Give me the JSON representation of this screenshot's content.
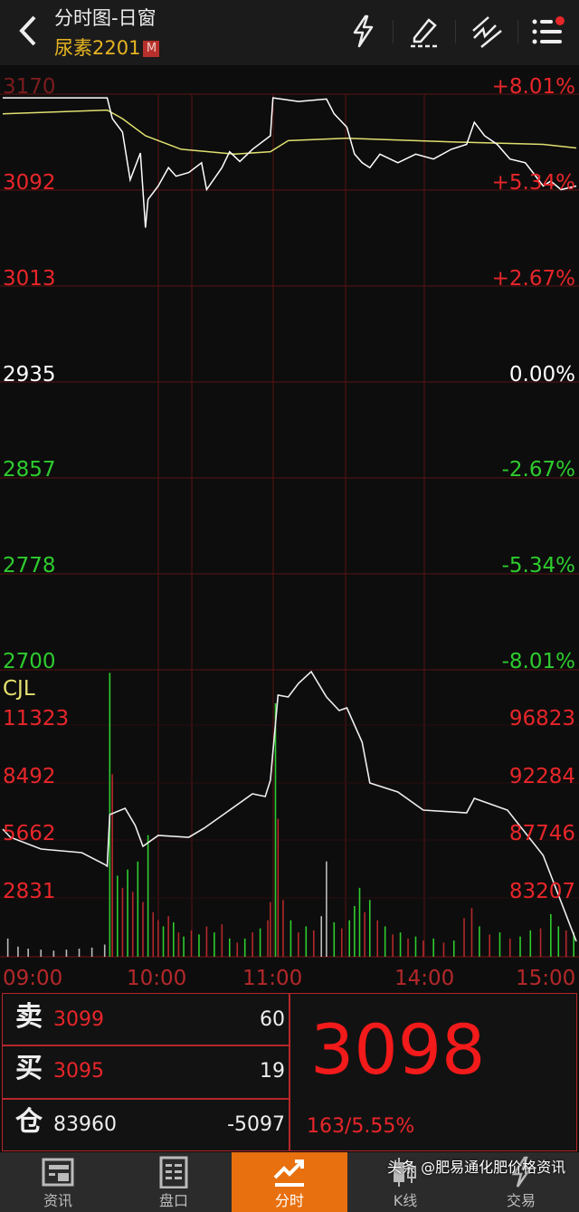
{
  "header": {
    "title": "分时图-日窗",
    "symbol": "尿素2201",
    "badge": "M",
    "icons": [
      "back-icon",
      "lightning-icon",
      "pencil-icon",
      "draw-line-icon",
      "menu-list-icon"
    ]
  },
  "colors": {
    "up": "#e8262a",
    "down": "#2ecc2e",
    "price_line": "#ffffff",
    "avg_line": "#e0e070",
    "grid": "#5a1214",
    "accent": "#e8700f",
    "symbol": "#e6b422"
  },
  "price_axis": {
    "left": [
      "3170",
      "3092",
      "3013",
      "2935",
      "2857",
      "2778",
      "2700"
    ],
    "right": [
      "+8.01%",
      "+5.34%",
      "+2.67%",
      "0.00%",
      "-2.67%",
      "-5.34%",
      "-8.01%"
    ],
    "max": 3170,
    "min": 2700,
    "prev_close": 2935
  },
  "volume_axis": {
    "title": "CJL",
    "left": [
      "11323",
      "8492",
      "5662",
      "2831"
    ],
    "right": [
      "96823",
      "92284",
      "87746",
      "83207"
    ],
    "vol_max": 14150,
    "oi_top": 96823,
    "oi_step": 4539
  },
  "time_axis": [
    "09:00",
    "10:00",
    "11:00",
    "14:00",
    "15:00"
  ],
  "chart_data": {
    "type": "line",
    "price": [
      [
        "09:00",
        3167
      ],
      [
        "09:41",
        3167
      ],
      [
        "09:43",
        3150
      ],
      [
        "09:47",
        3139
      ],
      [
        "09:50",
        3100
      ],
      [
        "09:54",
        3122
      ],
      [
        "09:56",
        3061
      ],
      [
        "09:57",
        3084
      ],
      [
        "10:01",
        3095
      ],
      [
        "10:05",
        3110
      ],
      [
        "10:08",
        3103
      ],
      [
        "10:13",
        3106
      ],
      [
        "10:33",
        3114
      ],
      [
        "10:35",
        3092
      ],
      [
        "10:41",
        3110
      ],
      [
        "10:44",
        3123
      ],
      [
        "10:48",
        3115
      ],
      [
        "10:53",
        3125
      ],
      [
        "11:00",
        3136
      ],
      [
        "11:01",
        3167
      ],
      [
        "11:11",
        3164
      ],
      [
        "11:22",
        3166
      ],
      [
        "11:25",
        3154
      ],
      [
        "13:30",
        3143
      ],
      [
        "13:33",
        3121
      ],
      [
        "13:36",
        3114
      ],
      [
        "13:39",
        3110
      ],
      [
        "13:43",
        3121
      ],
      [
        "13:50",
        3114
      ],
      [
        "13:57",
        3121
      ],
      [
        "14:04",
        3117
      ],
      [
        "14:11",
        3125
      ],
      [
        "14:17",
        3129
      ],
      [
        "14:20",
        3147
      ],
      [
        "14:24",
        3136
      ],
      [
        "14:29",
        3129
      ],
      [
        "14:34",
        3117
      ],
      [
        "14:40",
        3114
      ],
      [
        "14:43",
        3106
      ],
      [
        "14:47",
        3095
      ],
      [
        "14:50",
        3099
      ],
      [
        "14:54",
        3092
      ],
      [
        "15:00",
        3095
      ]
    ],
    "average": [
      [
        "09:00",
        3154
      ],
      [
        "09:41",
        3157
      ],
      [
        "09:47",
        3150
      ],
      [
        "09:56",
        3136
      ],
      [
        "10:10",
        3125
      ],
      [
        "10:46",
        3121
      ],
      [
        "11:00",
        3123
      ],
      [
        "11:07",
        3132
      ],
      [
        "13:30",
        3134
      ],
      [
        "14:11",
        3131
      ],
      [
        "14:47",
        3129
      ],
      [
        "15:00",
        3126
      ]
    ],
    "open_interest": [
      [
        "09:00",
        88053
      ],
      [
        "09:03",
        87411
      ],
      [
        "09:15",
        86484
      ],
      [
        "09:31",
        86200
      ],
      [
        "09:40",
        85272
      ],
      [
        "09:41",
        85130
      ],
      [
        "09:42",
        89194
      ],
      [
        "09:48",
        89693
      ],
      [
        "09:52",
        88338
      ],
      [
        "09:55",
        86700
      ],
      [
        "10:01",
        87554
      ],
      [
        "10:13",
        87411
      ],
      [
        "10:34",
        88125
      ],
      [
        "10:43",
        89408
      ],
      [
        "10:53",
        90834
      ],
      [
        "10:58",
        90620
      ],
      [
        "11:00",
        91903
      ],
      [
        "11:03",
        98606
      ],
      [
        "11:07",
        98463
      ],
      [
        "11:11",
        99533
      ],
      [
        "11:16",
        100460
      ],
      [
        "11:22",
        98463
      ],
      [
        "11:27",
        97393
      ],
      [
        "13:30",
        97607
      ],
      [
        "13:36",
        94898
      ],
      [
        "13:39",
        91689
      ],
      [
        "13:50",
        90976
      ],
      [
        "14:00",
        89550
      ],
      [
        "14:17",
        89336
      ],
      [
        "14:20",
        90477
      ],
      [
        "14:33",
        89550
      ],
      [
        "14:47",
        85985
      ],
      [
        "15:00",
        79212
      ]
    ],
    "volume": [
      [
        "09:02",
        900,
        "w"
      ],
      [
        "09:06",
        500,
        "w"
      ],
      [
        "09:10",
        400,
        "w"
      ],
      [
        "09:15",
        350,
        "w"
      ],
      [
        "09:20",
        300,
        "w"
      ],
      [
        "09:25",
        350,
        "w"
      ],
      [
        "09:30",
        400,
        "w"
      ],
      [
        "09:35",
        450,
        "w"
      ],
      [
        "09:40",
        600,
        "w"
      ],
      [
        "09:42",
        14000,
        "g"
      ],
      [
        "09:43",
        9000,
        "r"
      ],
      [
        "09:45",
        4000,
        "g"
      ],
      [
        "09:47",
        3400,
        "r"
      ],
      [
        "09:49",
        4300,
        "g"
      ],
      [
        "09:51",
        3200,
        "r"
      ],
      [
        "09:53",
        4700,
        "g"
      ],
      [
        "09:55",
        2700,
        "r"
      ],
      [
        "09:57",
        6000,
        "g"
      ],
      [
        "09:59",
        2200,
        "r"
      ],
      [
        "10:01",
        1800,
        "r"
      ],
      [
        "10:03",
        1500,
        "g"
      ],
      [
        "10:05",
        2000,
        "r"
      ],
      [
        "10:07",
        1700,
        "g"
      ],
      [
        "10:09",
        1200,
        "r"
      ],
      [
        "10:11",
        1000,
        "g"
      ],
      [
        "10:14",
        1300,
        "r"
      ],
      [
        "10:32",
        1100,
        "g"
      ],
      [
        "10:35",
        1500,
        "r"
      ],
      [
        "10:38",
        1200,
        "g"
      ],
      [
        "10:41",
        1600,
        "r"
      ],
      [
        "10:44",
        900,
        "g"
      ],
      [
        "10:47",
        700,
        "r"
      ],
      [
        "10:50",
        900,
        "g"
      ],
      [
        "10:53",
        1200,
        "r"
      ],
      [
        "10:56",
        1400,
        "g"
      ],
      [
        "10:59",
        1800,
        "r"
      ],
      [
        "11:00",
        2700,
        "r"
      ],
      [
        "11:02",
        12500,
        "g"
      ],
      [
        "11:03",
        6800,
        "r"
      ],
      [
        "11:05",
        2800,
        "r"
      ],
      [
        "11:08",
        1800,
        "g"
      ],
      [
        "11:11",
        1200,
        "r"
      ],
      [
        "11:14",
        1500,
        "g"
      ],
      [
        "11:17",
        1300,
        "r"
      ],
      [
        "11:20",
        2000,
        "w"
      ],
      [
        "11:22",
        4700,
        "w"
      ],
      [
        "11:25",
        1700,
        "g"
      ],
      [
        "11:28",
        1400,
        "r"
      ],
      [
        "13:31",
        1800,
        "g"
      ],
      [
        "13:33",
        2500,
        "g"
      ],
      [
        "13:35",
        3400,
        "g"
      ],
      [
        "13:37",
        2200,
        "r"
      ],
      [
        "13:39",
        2800,
        "g"
      ],
      [
        "13:42",
        1800,
        "r"
      ],
      [
        "13:45",
        1500,
        "g"
      ],
      [
        "13:48",
        1100,
        "r"
      ],
      [
        "13:51",
        1200,
        "g"
      ],
      [
        "13:54",
        900,
        "r"
      ],
      [
        "13:57",
        1000,
        "g"
      ],
      [
        "14:00",
        800,
        "r"
      ],
      [
        "14:04",
        900,
        "g"
      ],
      [
        "14:08",
        700,
        "r"
      ],
      [
        "14:12",
        800,
        "g"
      ],
      [
        "14:16",
        1900,
        "r"
      ],
      [
        "14:19",
        2400,
        "r"
      ],
      [
        "14:22",
        1500,
        "g"
      ],
      [
        "14:26",
        1100,
        "r"
      ],
      [
        "14:30",
        1200,
        "g"
      ],
      [
        "14:34",
        900,
        "r"
      ],
      [
        "14:38",
        1000,
        "g"
      ],
      [
        "14:42",
        1300,
        "g"
      ],
      [
        "14:46",
        1400,
        "r"
      ],
      [
        "14:50",
        2100,
        "g"
      ],
      [
        "14:53",
        1500,
        "g"
      ],
      [
        "14:56",
        1300,
        "r"
      ],
      [
        "14:59",
        1200,
        "g"
      ]
    ]
  },
  "quote": {
    "sell_label": "卖",
    "sell_price": "3099",
    "sell_qty": "60",
    "buy_label": "买",
    "buy_price": "3095",
    "buy_qty": "19",
    "oi_label": "仓",
    "oi_value": "83960",
    "oi_change": "-5097",
    "last_price": "3098",
    "change": "163/5.55%"
  },
  "nav": [
    {
      "label": "资讯",
      "icon": "news-icon"
    },
    {
      "label": "盘口",
      "icon": "order-book-icon"
    },
    {
      "label": "分时",
      "icon": "intraday-chart-icon",
      "active": true
    },
    {
      "label": "K线",
      "icon": "candlestick-icon"
    },
    {
      "label": "交易",
      "icon": "trade-lightning-icon"
    }
  ],
  "watermark": "头条 @肥易通化肥价格资讯"
}
